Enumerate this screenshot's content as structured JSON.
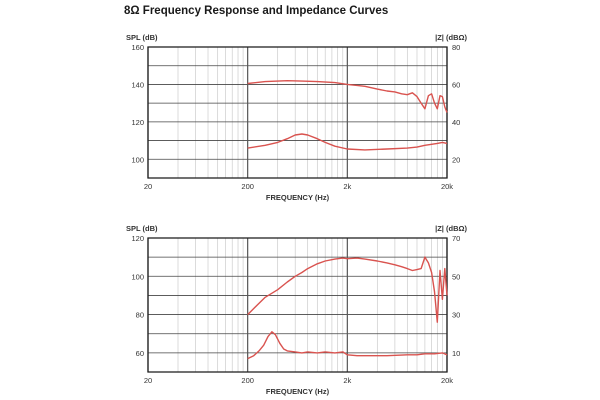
{
  "page": {
    "title": "8Ω Frequency Response and Impedance Curves"
  },
  "colors": {
    "curve": "#d9534f",
    "grid_major": "#555555",
    "grid_minor": "#cccccc",
    "grid_mid": "#444444"
  },
  "chart_data": [
    {
      "type": "line",
      "title": "",
      "xlabel": "FREQUENCY (Hz)",
      "ylabel": "SPL (dB)",
      "y2label": "|Z| (dBΩ)",
      "x_scale": "log",
      "xlim": [
        20,
        20000
      ],
      "x_ticks": [
        20,
        200,
        2000,
        20000
      ],
      "x_tick_labels": [
        "20",
        "200",
        "2k",
        "20k"
      ],
      "ylim": [
        90,
        160
      ],
      "y_ticks": [
        100,
        120,
        140,
        160
      ],
      "y_tick_labels": [
        "100",
        "120",
        "140",
        "160"
      ],
      "y2lim": [
        10,
        80
      ],
      "y2_ticks": [
        20,
        40,
        60,
        80
      ],
      "y2_tick_labels": [
        "20",
        "40",
        "60",
        "80"
      ],
      "grid": true,
      "series": [
        {
          "axis": "left",
          "x": [
            200,
            300,
            500,
            700,
            1000,
            1500,
            2000,
            2500,
            3000,
            4000,
            5000,
            6000,
            7000,
            8000,
            9000,
            10000,
            11000,
            12000,
            13000,
            14000,
            15000,
            16000,
            17000,
            18000,
            19000,
            20000
          ],
          "values": [
            140.5,
            141.5,
            142,
            141.8,
            141.5,
            141,
            140,
            139.5,
            139,
            137.5,
            136.5,
            136,
            135,
            134.5,
            135.5,
            133.5,
            130,
            127,
            134,
            135,
            130,
            127,
            134,
            133.5,
            128,
            125
          ]
        },
        {
          "axis": "left",
          "x": [
            200,
            300,
            400,
            500,
            600,
            700,
            800,
            1000,
            1200,
            1500,
            2000,
            3000,
            5000,
            8000,
            10000,
            12000,
            14000,
            16000,
            18000,
            20000
          ],
          "values": [
            106,
            107.5,
            109,
            111,
            113,
            113.5,
            113,
            111,
            109,
            107,
            105.5,
            105,
            105.5,
            106,
            106.5,
            107.5,
            108,
            108.5,
            109,
            108.5
          ]
        }
      ]
    },
    {
      "type": "line",
      "title": "",
      "xlabel": "FREQUENCY (Hz)",
      "ylabel": "SPL (dB)",
      "y2label": "|Z| (dBΩ)",
      "x_scale": "log",
      "xlim": [
        20,
        20000
      ],
      "x_ticks": [
        20,
        200,
        2000,
        20000
      ],
      "x_tick_labels": [
        "20",
        "200",
        "2k",
        "20k"
      ],
      "ylim": [
        50,
        120
      ],
      "y_ticks": [
        60,
        80,
        100,
        120
      ],
      "y_tick_labels": [
        "60",
        "80",
        "100",
        "120"
      ],
      "y2lim": [
        0,
        70
      ],
      "y2_ticks": [
        10,
        30,
        50,
        70
      ],
      "y2_tick_labels": [
        "10",
        "30",
        "50",
        "70"
      ],
      "grid": true,
      "series": [
        {
          "axis": "left",
          "x": [
            200,
            250,
            300,
            400,
            500,
            600,
            700,
            800,
            1000,
            1200,
            1500,
            1800,
            2000,
            2500,
            3000,
            4000,
            5000,
            6000,
            7000,
            8000,
            9000,
            10000,
            11000,
            12000,
            13000,
            14000,
            15000,
            16000,
            17000,
            18000,
            19000,
            20000
          ],
          "values": [
            80,
            85,
            89,
            93,
            97,
            100,
            102,
            104,
            106.5,
            108,
            109,
            109.5,
            109.2,
            109.5,
            109,
            108,
            107,
            106,
            105,
            104,
            103,
            103.5,
            104,
            110,
            107,
            102,
            92,
            76,
            103,
            88,
            104,
            90
          ]
        },
        {
          "axis": "left",
          "x": [
            200,
            230,
            260,
            290,
            320,
            350,
            380,
            420,
            460,
            500,
            600,
            700,
            800,
            1000,
            1200,
            1500,
            1800,
            2000,
            2500,
            3000,
            5000,
            8000,
            10000,
            12000,
            15000,
            18000,
            20000
          ],
          "values": [
            57,
            58.5,
            61,
            64,
            68.5,
            71,
            69.5,
            65,
            62,
            61,
            60.5,
            60,
            60.5,
            60,
            60.5,
            60,
            60.5,
            59,
            58.5,
            58.5,
            58.5,
            59,
            59,
            59.5,
            59.5,
            60,
            59
          ]
        }
      ]
    }
  ]
}
